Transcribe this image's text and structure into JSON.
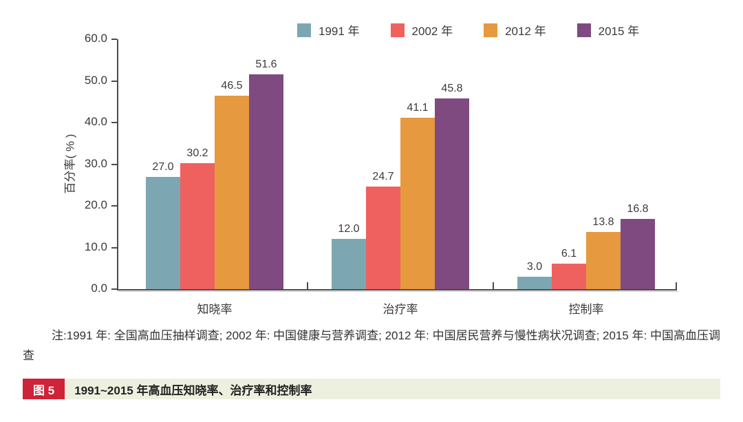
{
  "chart_data": {
    "type": "bar",
    "title": "",
    "xlabel": "",
    "ylabel": "百分率( % )",
    "ylim": [
      0,
      60
    ],
    "yticks": [
      0,
      10,
      20,
      30,
      40,
      50,
      60
    ],
    "ytick_decimals": 1,
    "grid": false,
    "legend_position": "top",
    "value_labels": true,
    "value_label_decimals": 1,
    "categories": [
      "知晓率",
      "治疗率",
      "控制率"
    ],
    "series": [
      {
        "name": "1991 年",
        "color": "#7CA7B2",
        "values": [
          27.0,
          12.0,
          3.0
        ]
      },
      {
        "name": "2002 年",
        "color": "#EF615F",
        "values": [
          30.2,
          24.7,
          6.1
        ]
      },
      {
        "name": "2012 年",
        "color": "#E6993E",
        "values": [
          46.5,
          41.1,
          13.8
        ]
      },
      {
        "name": "2015 年",
        "color": "#7F4A80",
        "values": [
          51.6,
          45.8,
          16.8
        ]
      }
    ],
    "axis_color": "#4b4b4b"
  },
  "note": {
    "text": "注:1991 年: 全国高血压抽样调查; 2002 年: 中国健康与营养调查; 2012 年: 中国居民营养与慢性病状况调查; 2015 年: 中国高血压调查"
  },
  "caption": {
    "badge": "图 5",
    "text": "1991~2015 年高血压知晓率、治疗率和控制率",
    "badge_color": "#CE2338",
    "bar_color": "#EEF0DF"
  }
}
